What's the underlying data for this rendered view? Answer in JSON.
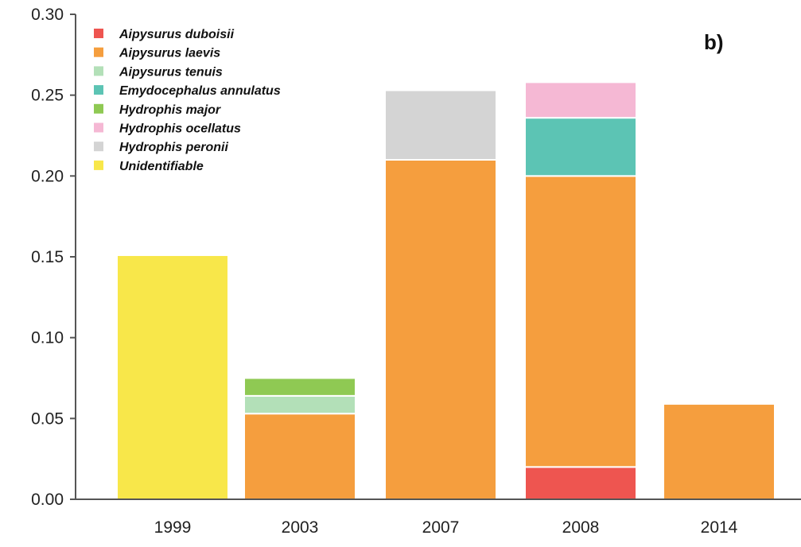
{
  "chart_data": {
    "type": "bar",
    "stacked": true,
    "panel_label": "b)",
    "categories": [
      "1999",
      "2003",
      "2007",
      "2008",
      "2014"
    ],
    "ylim": [
      0,
      0.3
    ],
    "yticks": [
      "0.00",
      "0.05",
      "0.10",
      "0.15",
      "0.20",
      "0.25",
      "0.30"
    ],
    "ytick_values": [
      0,
      0.05,
      0.1,
      0.15,
      0.2,
      0.25,
      0.3
    ],
    "xlabel": "",
    "ylabel": "",
    "grid": false,
    "legend_position": "top-left",
    "series": [
      {
        "name": "Aipysurus duboisii",
        "color": "#ee5550",
        "values": [
          0,
          0,
          0,
          0.02,
          0
        ]
      },
      {
        "name": "Aipysurus laevis",
        "color": "#f59e3e",
        "values": [
          0,
          0.053,
          0.21,
          0.18,
          0.059
        ]
      },
      {
        "name": "Aipysurus tenuis",
        "color": "#b3e0b8",
        "values": [
          0,
          0.011,
          0,
          0,
          0
        ]
      },
      {
        "name": "Emydocephalus annulatus",
        "color": "#5cc4b4",
        "values": [
          0,
          0,
          0,
          0.036,
          0
        ]
      },
      {
        "name": "Hydrophis major",
        "color": "#8fc953",
        "values": [
          0,
          0.011,
          0,
          0,
          0
        ]
      },
      {
        "name": "Hydrophis ocellatus",
        "color": "#f5b8d4",
        "values": [
          0,
          0,
          0,
          0.022,
          0
        ]
      },
      {
        "name": "Hydrophis peronii",
        "color": "#d4d4d4",
        "values": [
          0,
          0,
          0.043,
          0,
          0
        ]
      },
      {
        "name": "Unidentifiable",
        "color": "#f8e74a",
        "values": [
          0.151,
          0,
          0,
          0,
          0
        ]
      }
    ]
  }
}
